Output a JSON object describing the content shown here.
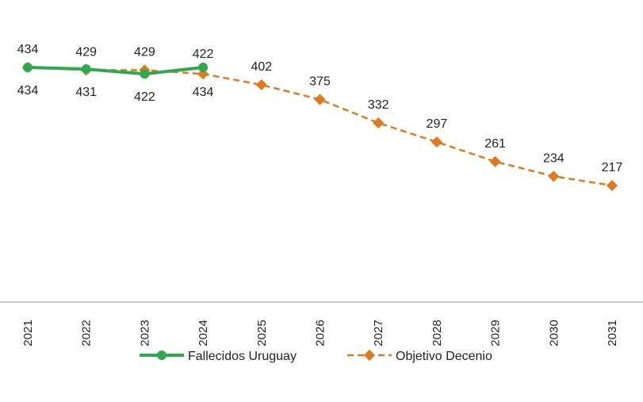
{
  "chart_data": {
    "type": "line",
    "categories": [
      "2021",
      "2022",
      "2023",
      "2024",
      "2025",
      "2026",
      "2027",
      "2028",
      "2029",
      "2030",
      "2031"
    ],
    "ylim": [
      0,
      450
    ],
    "grid": false,
    "legend_position": "bottom",
    "series": [
      {
        "name": "Fallecidos Uruguay",
        "values": [
          434,
          431,
          422,
          434,
          null,
          null,
          null,
          null,
          null,
          null,
          null
        ],
        "color": "#2fa84f",
        "marker": "circle",
        "line_style": "solid",
        "labels": [
          "434",
          "431",
          "422",
          "434",
          "",
          "",
          "",
          "",
          "",
          "",
          ""
        ]
      },
      {
        "name": "Objetivo Decenio",
        "values": [
          434,
          429,
          429,
          422,
          402,
          375,
          332,
          297,
          261,
          234,
          217
        ],
        "color": "#e07a1f",
        "marker": "diamond",
        "line_style": "dashed",
        "labels": [
          "434",
          "429",
          "429",
          "422",
          "402",
          "375",
          "332",
          "297",
          "261",
          "234",
          "217"
        ]
      }
    ]
  },
  "legend": {
    "series_1": "Fallecidos Uruguay",
    "series_2": "Objetivo Decenio"
  },
  "axis_color": "#8c8c8c"
}
